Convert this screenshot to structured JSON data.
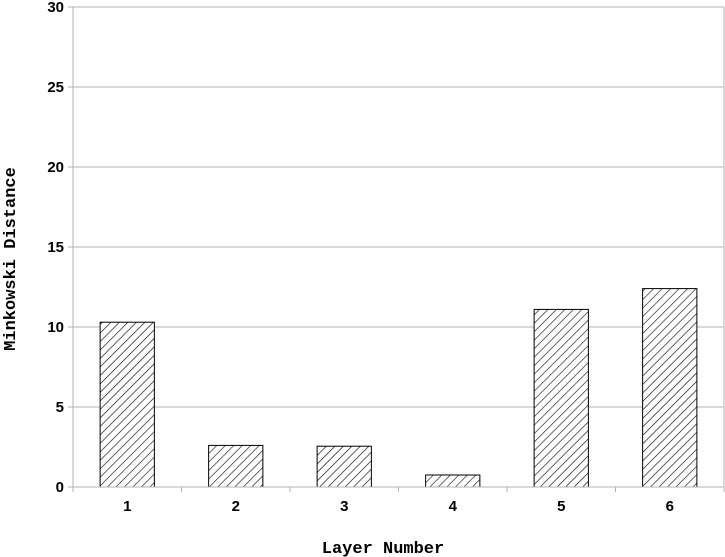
{
  "chart_data": {
    "type": "bar",
    "categories": [
      "1",
      "2",
      "3",
      "4",
      "5",
      "6"
    ],
    "values": [
      10.3,
      2.6,
      2.55,
      0.75,
      11.1,
      12.4
    ],
    "title": "",
    "xlabel": "Layer Number",
    "ylabel": "Minkowski Distance",
    "ylim": [
      0,
      30
    ],
    "yticks": [
      "0",
      "5",
      "10",
      "15",
      "20",
      "25",
      "30"
    ],
    "grid": true,
    "bar_pattern": "diagonal-hatch",
    "bar_color": "#ffffff",
    "edge_color": "#000000"
  }
}
